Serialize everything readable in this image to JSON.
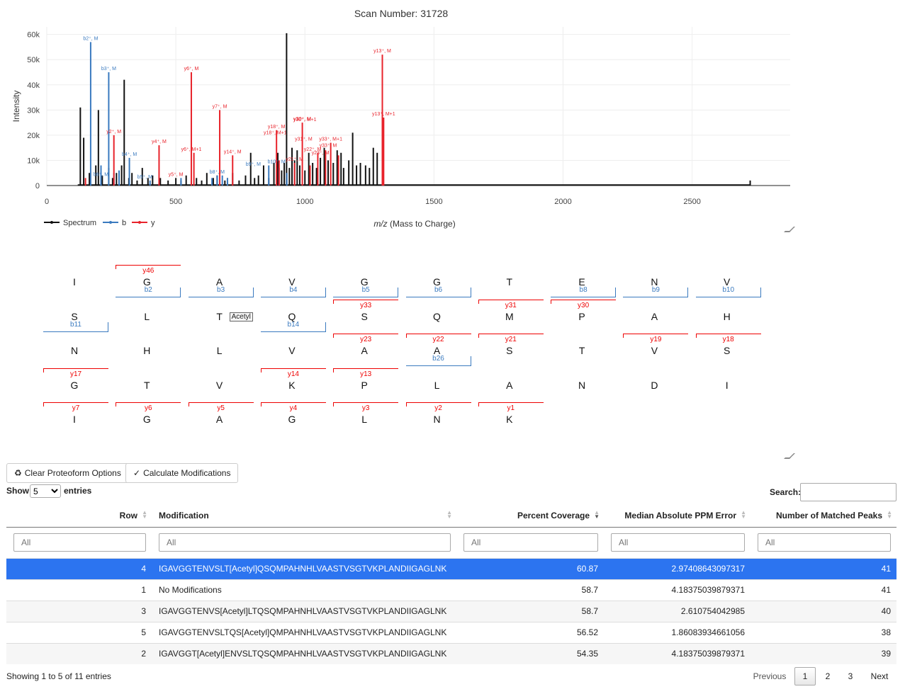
{
  "chart_data": {
    "type": "bar",
    "title": "Scan Number: 31728",
    "xlabel_italic": "m/z",
    "xlabel_rest": " (Mass to Charge)",
    "ylabel": "Intensity",
    "xlim": [
      0,
      2880
    ],
    "ylim": [
      0,
      63000
    ],
    "x_ticks": [
      0,
      500,
      1000,
      1500,
      2000,
      2500
    ],
    "x_tick_labels": [
      "0",
      "500",
      "1000",
      "1500",
      "2000",
      "2500"
    ],
    "y_ticks": [
      0,
      10000,
      20000,
      30000,
      40000,
      50000,
      60000
    ],
    "y_tick_labels": [
      "0",
      "10k",
      "20k",
      "30k",
      "40k",
      "50k",
      "60k"
    ],
    "legend": [
      "Spectrum",
      "b",
      "y"
    ],
    "legend_placement": "bottom-left",
    "colors": {
      "spectrum": "#111111",
      "b": "#3a7abf",
      "y": "#e8232b"
    },
    "series": [
      {
        "name": "Spectrum",
        "x": [
          130,
          143,
          165,
          190,
          200,
          215,
          240,
          255,
          270,
          290,
          300,
          318,
          330,
          350,
          370,
          392,
          410,
          440,
          470,
          500,
          520,
          540,
          560,
          580,
          600,
          620,
          645,
          660,
          690,
          700,
          720,
          745,
          770,
          790,
          805,
          820,
          840,
          860,
          880,
          895,
          910,
          920,
          929,
          940,
          950,
          960,
          970,
          980,
          1000,
          1015,
          1030,
          1045,
          1060,
          1075,
          1090,
          1110,
          1125,
          1140,
          1150,
          1170,
          1185,
          1200,
          1215,
          1235,
          1250,
          1265,
          1280,
          2725
        ],
        "values": [
          31000,
          19000,
          5000,
          8000,
          30000,
          4000,
          7000,
          3000,
          5000,
          8000,
          42000,
          3000,
          5000,
          2000,
          7000,
          3000,
          4000,
          3000,
          2000,
          3000,
          2000,
          4000,
          2000,
          3000,
          2000,
          5000,
          3000,
          4000,
          2000,
          3000,
          5000,
          2000,
          4000,
          13000,
          3000,
          4000,
          8000,
          3000,
          9000,
          13000,
          6000,
          9000,
          60500,
          7000,
          15000,
          10000,
          14000,
          8000,
          6000,
          13000,
          9000,
          7000,
          11000,
          15000,
          10000,
          9000,
          14000,
          13000,
          7000,
          10000,
          21000,
          8000,
          9000,
          8000,
          7000,
          15000,
          13000,
          2000
        ]
      },
      {
        "name": "b",
        "x": [
          170,
          210,
          240,
          260,
          280,
          320,
          400,
          520,
          640,
          660,
          680,
          700,
          860,
          900,
          930
        ],
        "values": [
          57000,
          8000,
          45000,
          5000,
          6000,
          11000,
          2000,
          3000,
          3000,
          4000,
          4000,
          3000,
          8000,
          7000,
          5000
        ]
      },
      {
        "name": "y",
        "x": [
          150,
          260,
          435,
          560,
          570,
          670,
          720,
          890,
          900,
          960,
          990,
          1020,
          1050,
          1080,
          1100,
          1130,
          1300,
          1305
        ],
        "values": [
          3000,
          20000,
          16000,
          45000,
          13000,
          30000,
          12000,
          22000,
          10000,
          9000,
          25000,
          8000,
          13000,
          14000,
          17000,
          12000,
          52000,
          27000
        ]
      }
    ],
    "annotations": [
      {
        "text": "b2⁺, M",
        "x": 170,
        "y": 57000,
        "series": "b"
      },
      {
        "text": "b3⁺, M",
        "x": 240,
        "y": 45000,
        "series": "b"
      },
      {
        "text": "b4⁺, M",
        "x": 320,
        "y": 11000,
        "series": "b"
      },
      {
        "text": "b6⁺, M",
        "x": 210,
        "y": 3000,
        "series": "b"
      },
      {
        "text": "b5⁺, M",
        "x": 380,
        "y": 2000,
        "series": "b"
      },
      {
        "text": "b8⁺, M",
        "x": 660,
        "y": 4000,
        "series": "b"
      },
      {
        "text": "b9⁺, M",
        "x": 800,
        "y": 7000,
        "series": "b"
      },
      {
        "text": "b10⁺, M",
        "x": 890,
        "y": 8000,
        "series": "b"
      },
      {
        "text": "y2⁺, M",
        "x": 260,
        "y": 20000,
        "series": "y"
      },
      {
        "text": "y4⁺, M",
        "x": 435,
        "y": 16000,
        "series": "y"
      },
      {
        "text": "y6⁺, M",
        "x": 560,
        "y": 45000,
        "series": "y"
      },
      {
        "text": "y6⁺, M+1",
        "x": 560,
        "y": 13000,
        "series": "y"
      },
      {
        "text": "y7⁺, M",
        "x": 670,
        "y": 30000,
        "series": "y"
      },
      {
        "text": "y14⁺, M",
        "x": 720,
        "y": 12000,
        "series": "y"
      },
      {
        "text": "y5⁺, M",
        "x": 500,
        "y": 3000,
        "series": "y"
      },
      {
        "text": "y18⁺, M",
        "x": 890,
        "y": 22000,
        "series": "y"
      },
      {
        "text": "y18⁺, M+1",
        "x": 885,
        "y": 19500,
        "series": "y"
      },
      {
        "text": "y30⁺, M",
        "x": 990,
        "y": 25000,
        "series": "y"
      },
      {
        "text": "y30⁺, M+1",
        "x": 1000,
        "y": 24800,
        "series": "y"
      },
      {
        "text": "y31⁺, M",
        "x": 995,
        "y": 17000,
        "series": "y"
      },
      {
        "text": "y33⁺, M+1",
        "x": 1100,
        "y": 17000,
        "series": "y"
      },
      {
        "text": "y33⁺, M",
        "x": 1090,
        "y": 14500,
        "series": "y"
      },
      {
        "text": "y23⁺, M",
        "x": 1060,
        "y": 11500,
        "series": "y"
      },
      {
        "text": "y22⁺, M",
        "x": 1030,
        "y": 13000,
        "series": "y"
      },
      {
        "text": "y21⁺, M",
        "x": 960,
        "y": 9000,
        "series": "y"
      },
      {
        "text": "y13⁺, M",
        "x": 1300,
        "y": 52000,
        "series": "y"
      },
      {
        "text": "y13⁺, M+1",
        "x": 1305,
        "y": 27000,
        "series": "y"
      }
    ]
  },
  "sequence_rows": [
    [
      "I",
      "G",
      "A",
      "V",
      "G",
      "G",
      "T",
      "E",
      "N",
      "V"
    ],
    [
      "S",
      "L",
      "T",
      "Q",
      "S",
      "Q",
      "M",
      "P",
      "A",
      "H"
    ],
    [
      "N",
      "H",
      "L",
      "V",
      "A",
      "A",
      "S",
      "T",
      "V",
      "S"
    ],
    [
      "G",
      "T",
      "V",
      "K",
      "P",
      "L",
      "A",
      "N",
      "D",
      "I"
    ],
    [
      "I",
      "G",
      "A",
      "G",
      "L",
      "N",
      "K"
    ]
  ],
  "b_ions": [
    {
      "row": 0,
      "col": 1,
      "label": "b2"
    },
    {
      "row": 0,
      "col": 2,
      "label": "b3"
    },
    {
      "row": 0,
      "col": 3,
      "label": "b4"
    },
    {
      "row": 0,
      "col": 4,
      "label": "b5"
    },
    {
      "row": 0,
      "col": 5,
      "label": "b6"
    },
    {
      "row": 0,
      "col": 7,
      "label": "b8"
    },
    {
      "row": 0,
      "col": 8,
      "label": "b9"
    },
    {
      "row": 0,
      "col": 9,
      "label": "b10"
    },
    {
      "row": 1,
      "col": 0,
      "label": "b11"
    },
    {
      "row": 1,
      "col": 3,
      "label": "b14"
    },
    {
      "row": 2,
      "col": 5,
      "label": "b26"
    }
  ],
  "y_ions": [
    {
      "row": 0,
      "col": 1,
      "label": "y46"
    },
    {
      "row": 1,
      "col": 4,
      "label": "y33"
    },
    {
      "row": 1,
      "col": 6,
      "label": "y31"
    },
    {
      "row": 1,
      "col": 7,
      "label": "y30"
    },
    {
      "row": 2,
      "col": 4,
      "label": "y23"
    },
    {
      "row": 2,
      "col": 5,
      "label": "y22"
    },
    {
      "row": 2,
      "col": 6,
      "label": "y21"
    },
    {
      "row": 2,
      "col": 8,
      "label": "y19"
    },
    {
      "row": 2,
      "col": 9,
      "label": "y18"
    },
    {
      "row": 3,
      "col": 0,
      "label": "y17"
    },
    {
      "row": 3,
      "col": 3,
      "label": "y14"
    },
    {
      "row": 3,
      "col": 4,
      "label": "y13"
    },
    {
      "row": 4,
      "col": 0,
      "label": "y7"
    },
    {
      "row": 4,
      "col": 1,
      "label": "y6"
    },
    {
      "row": 4,
      "col": 2,
      "label": "y5"
    },
    {
      "row": 4,
      "col": 3,
      "label": "y4"
    },
    {
      "row": 4,
      "col": 4,
      "label": "y3"
    },
    {
      "row": 4,
      "col": 5,
      "label": "y2"
    },
    {
      "row": 4,
      "col": 6,
      "label": "y1"
    }
  ],
  "modification_tag": {
    "row": 1,
    "col": 2,
    "label": "Acetyl"
  },
  "toolbar": {
    "clear_label": "Clear Proteoform Options",
    "calc_label": "Calculate Modifications",
    "recycle_icon": "recycle-icon",
    "check_icon": "check-icon"
  },
  "table_controls": {
    "show_label": "Show",
    "entries_value": "5",
    "entries_label": "entries",
    "search_label": "Search:",
    "search_value": ""
  },
  "table": {
    "columns": [
      "Row",
      "Modification",
      "Percent Coverage",
      "Median Absolute PPM Error",
      "Number of Matched Peaks"
    ],
    "filter_placeholder": "All",
    "rows": [
      {
        "row": "4",
        "mod": "IGAVGGTENVSLT[Acetyl]QSQMPAHNHLVAASTVSGTVKPLANDIIGAGLNK",
        "coverage": "60.87",
        "ppm": "2.97408643097317",
        "peaks": "41",
        "selected": true
      },
      {
        "row": "1",
        "mod": "No Modifications",
        "coverage": "58.7",
        "ppm": "4.18375039879371",
        "peaks": "41",
        "selected": false
      },
      {
        "row": "3",
        "mod": "IGAVGGTENVS[Acetyl]LTQSQMPAHNHLVAASTVSGTVKPLANDIIGAGLNK",
        "coverage": "58.7",
        "ppm": "2.610754042985",
        "peaks": "40",
        "selected": false
      },
      {
        "row": "5",
        "mod": "IGAVGGTENVSLTQS[Acetyl]QMPAHNHLVAASTVSGTVKPLANDIIGAGLNK",
        "coverage": "56.52",
        "ppm": "1.86083934661056",
        "peaks": "38",
        "selected": false
      },
      {
        "row": "2",
        "mod": "IGAVGGT[Acetyl]ENVSLTQSQMPAHNHLVAASTVSGTVKPLANDIIGAGLNK",
        "coverage": "54.35",
        "ppm": "4.18375039879371",
        "peaks": "39",
        "selected": false
      }
    ]
  },
  "footer": {
    "info": "Showing 1 to 5 of 11 entries",
    "previous": "Previous",
    "pages": [
      "1",
      "2",
      "3"
    ],
    "current_page": "1",
    "next": "Next"
  }
}
